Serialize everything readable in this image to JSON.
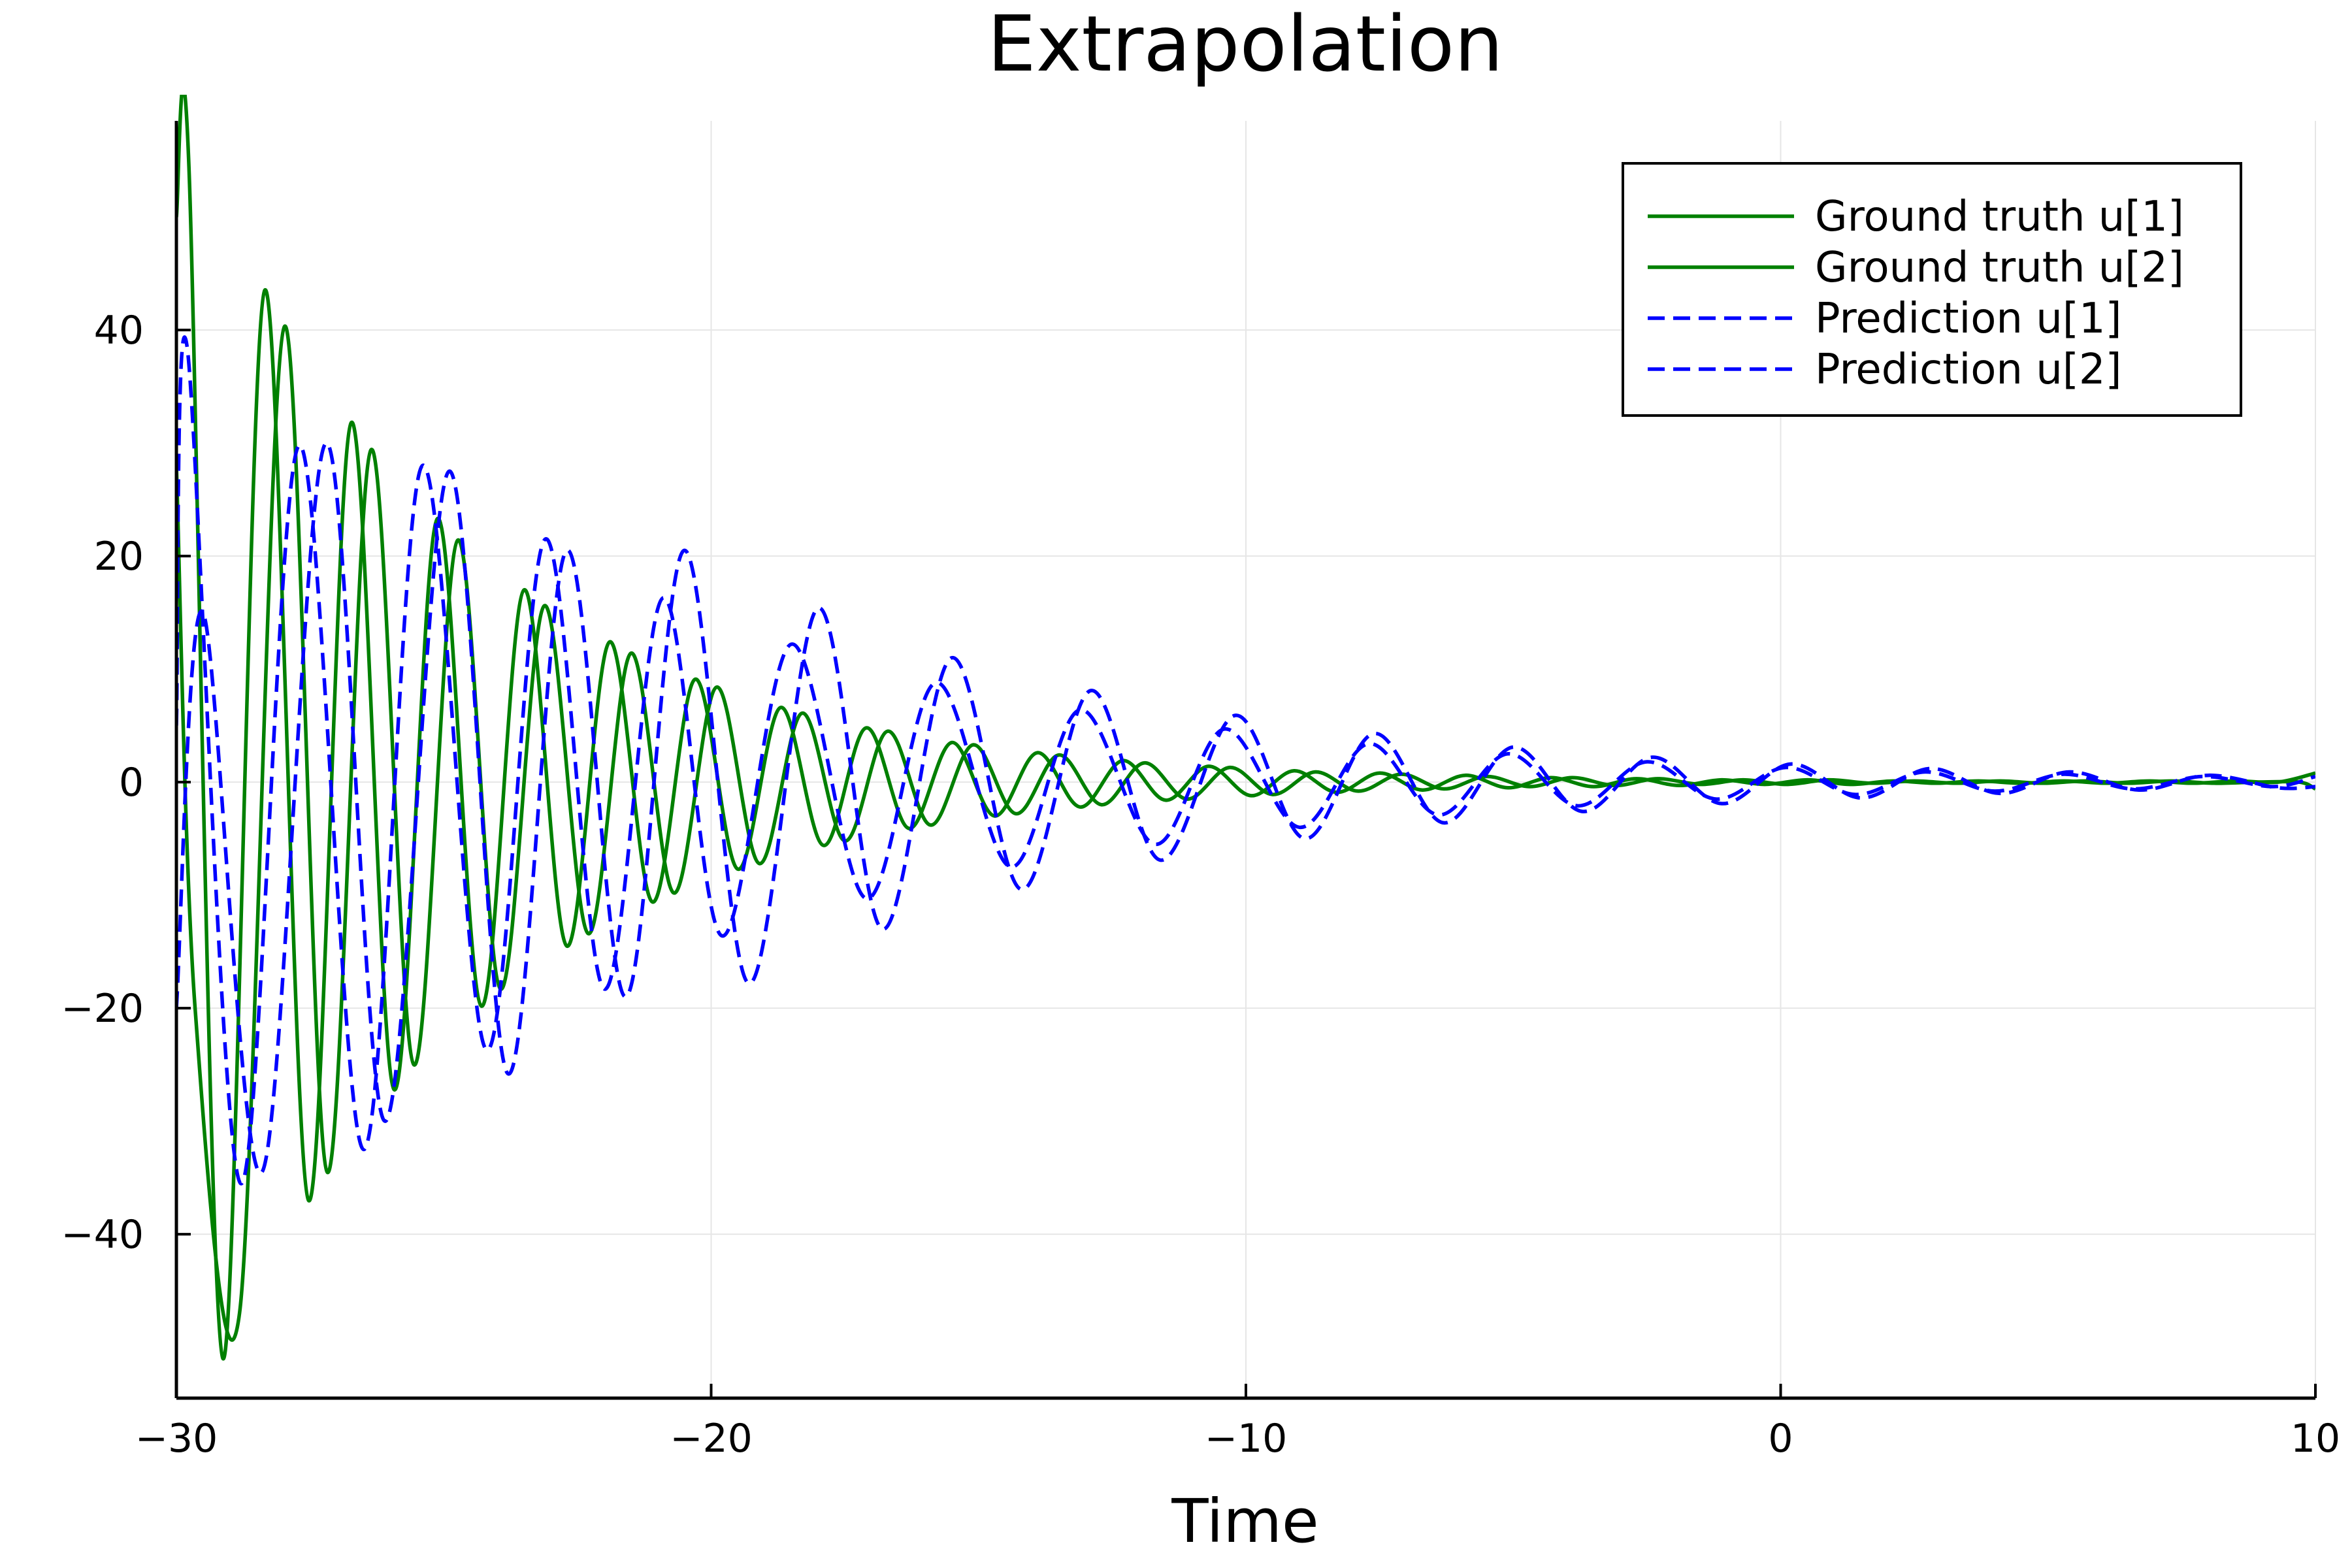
{
  "chart_data": {
    "type": "line",
    "title": "Extrapolation",
    "xlabel": "Time",
    "ylabel": "",
    "xlim": [
      -30,
      10
    ],
    "ylim": [
      -54.5,
      58.5
    ],
    "xticks": [
      -30,
      -20,
      -10,
      0,
      10
    ],
    "xtick_labels": [
      "−30",
      "−20",
      "−10",
      "0",
      "10"
    ],
    "yticks": [
      -40,
      -20,
      0,
      20,
      40
    ],
    "ytick_labels": [
      "−40",
      "−20",
      "0",
      "20",
      "40"
    ],
    "grid": true,
    "legend_position": "top-right",
    "series": [
      {
        "name": "Ground truth u[1]",
        "color": "#008000",
        "style": "solid",
        "x": [
          -30,
          -29.77,
          -29.13,
          -28.35,
          -27.53,
          -26.73,
          -25.93,
          -25.12,
          -24.3,
          -23.5,
          -22.7,
          -21.9,
          -21.1,
          -20.3,
          -19.5,
          -18.7,
          -17.9,
          -17.1,
          -16.3,
          -15.5,
          -14.7,
          -13.9,
          -13.1,
          -12.3,
          -11.5,
          -10.7,
          -9.9,
          -9.1,
          -8.3,
          -7.5,
          -6.7,
          -5.9,
          -5.1,
          -4.3,
          -3.5,
          -2.7,
          -1.9,
          -1.1,
          -0.3,
          0.5,
          1.3,
          2.1,
          2.9,
          3.7,
          4.5,
          5.3,
          6.1,
          6.9,
          7.7,
          8.5,
          9.3,
          10
        ],
        "y": [
          50,
          55,
          -51,
          43.5,
          -37,
          31.8,
          -27.2,
          23.3,
          -19.8,
          17,
          -14.5,
          12.4,
          -10.6,
          9.1,
          -7.7,
          6.6,
          -5.6,
          4.8,
          -4.1,
          3.5,
          -3,
          2.6,
          -2.2,
          1.9,
          -1.6,
          1.4,
          -1.2,
          1,
          -0.9,
          0.8,
          -0.7,
          0.6,
          -0.5,
          0.4,
          -0.4,
          0.3,
          -0.3,
          0.2,
          -0.2,
          0.2,
          -0.2,
          0.1,
          -0.1,
          0.1,
          -0.1,
          0.1,
          -0.1,
          0.1,
          -0.1,
          0.1,
          0,
          0.8
        ]
      },
      {
        "name": "Ground truth u[2]",
        "color": "#008000",
        "style": "solid",
        "x": [
          -30,
          -29.65,
          -28.82,
          -27.98,
          -27.18,
          -26.36,
          -25.56,
          -24.74,
          -23.94,
          -23.12,
          -22.3,
          -21.5,
          -20.7,
          -19.9,
          -19.1,
          -18.3,
          -17.5,
          -16.7,
          -15.9,
          -15.1,
          -14.3,
          -13.5,
          -12.7,
          -11.9,
          -11.1,
          -10.3,
          -9.5,
          -8.7,
          -7.9,
          -7.1,
          -6.3,
          -5.5,
          -4.7,
          -3.9,
          -3.1,
          -2.3,
          -1.5,
          -0.7,
          0.1,
          0.9,
          1.7,
          2.5,
          3.3,
          4.1,
          4.9,
          5.7,
          6.5,
          7.3,
          8.1,
          8.9,
          9.7,
          10
        ],
        "y": [
          28,
          -20,
          -47,
          40.3,
          -34.5,
          29.4,
          -25,
          21.4,
          -18.3,
          15.6,
          -13.4,
          11.4,
          -9.8,
          8.4,
          -7.2,
          6.1,
          -5.2,
          4.5,
          -3.8,
          3.3,
          -2.8,
          2.4,
          -2,
          1.7,
          -1.5,
          1.3,
          -1.1,
          0.9,
          -0.8,
          0.7,
          -0.6,
          0.5,
          -0.4,
          0.4,
          -0.3,
          0.3,
          -0.2,
          0.2,
          -0.2,
          0.2,
          -0.1,
          0.1,
          -0.1,
          0.1,
          -0.1,
          0.1,
          -0.1,
          0.1,
          -0.1,
          0,
          0,
          -0.6
        ]
      },
      {
        "name": "Prediction u[1]",
        "color": "#0000ff",
        "style": "dashed",
        "x": [
          -30,
          -29.8,
          -28.8,
          -27.7,
          -26.5,
          -25.4,
          -24.2,
          -23.1,
          -22,
          -20.9,
          -19.8,
          -18.5,
          -17.1,
          -15.8,
          -14.4,
          -13.1,
          -11.7,
          -10.4,
          -9,
          -7.7,
          -6.4,
          -5.1,
          -3.8,
          -2.5,
          -1.2,
          0.1,
          1.4,
          2.7,
          4,
          5.3,
          6.6,
          7.9,
          9.2,
          10
        ],
        "y": [
          5,
          38.5,
          -35.5,
          29.8,
          -32.5,
          28,
          -23.7,
          21.5,
          -18.3,
          16.3,
          -13.6,
          12.2,
          -10.3,
          8.8,
          -7.5,
          6.4,
          -5.5,
          4.7,
          -4,
          3.4,
          -2.9,
          2.5,
          -2.1,
          1.8,
          -1.5,
          1.3,
          -1.1,
          0.9,
          -0.8,
          0.7,
          -0.6,
          0.5,
          -0.4,
          0.5
        ]
      },
      {
        "name": "Prediction u[2]",
        "color": "#0000ff",
        "style": "dashed",
        "x": [
          -30,
          -29.5,
          -28.4,
          -27.2,
          -26.1,
          -24.9,
          -23.8,
          -22.7,
          -21.6,
          -20.5,
          -19.3,
          -18,
          -16.8,
          -15.5,
          -14.2,
          -12.9,
          -11.6,
          -10.2,
          -8.9,
          -7.6,
          -6.3,
          -5,
          -3.7,
          -2.4,
          -1.1,
          0.2,
          1.5,
          2.8,
          4.1,
          5.4,
          6.7,
          8,
          9.3,
          10
        ],
        "y": [
          -20,
          15,
          -34.5,
          30,
          -30,
          27.5,
          -25.8,
          20.5,
          -19,
          20.5,
          -17.8,
          15.4,
          -13,
          11,
          -9.5,
          8.1,
          -6.9,
          5.9,
          -5,
          4.3,
          -3.6,
          3.1,
          -2.6,
          2.2,
          -1.9,
          1.6,
          -1.4,
          1.2,
          -1,
          0.9,
          -0.7,
          0.6,
          -0.5,
          -0.4
        ]
      }
    ]
  }
}
